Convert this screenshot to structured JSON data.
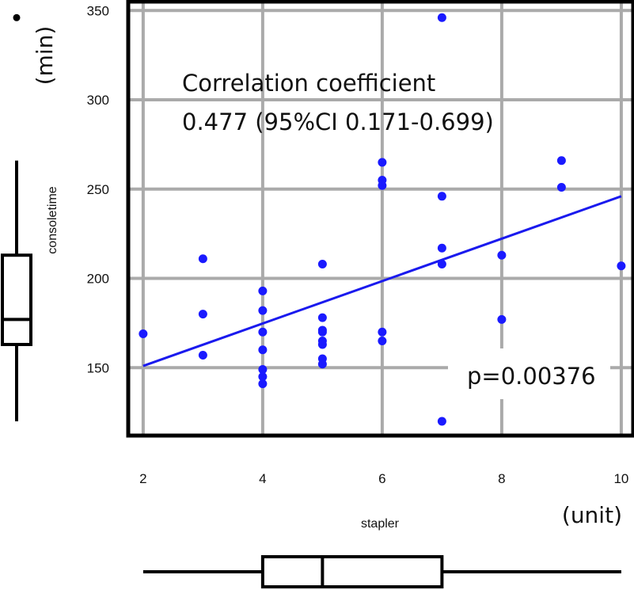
{
  "chart_data": {
    "type": "scatter",
    "xlabel": "stapler",
    "ylabel": "consoletime",
    "x_unit": "(unit)",
    "y_unit": "(min)",
    "xlim": [
      1.75,
      10.2
    ],
    "ylim": [
      112,
      355
    ],
    "x_ticks": [
      2,
      4,
      6,
      8,
      10
    ],
    "y_ticks": [
      150,
      200,
      250,
      300,
      350
    ],
    "grid": true,
    "point_color": "#1a1aff",
    "line_color": "#1a1aee",
    "points": [
      {
        "x": 2,
        "y": 169
      },
      {
        "x": 3,
        "y": 211
      },
      {
        "x": 3,
        "y": 180
      },
      {
        "x": 3,
        "y": 157
      },
      {
        "x": 4,
        "y": 193
      },
      {
        "x": 4,
        "y": 182
      },
      {
        "x": 4,
        "y": 170
      },
      {
        "x": 4,
        "y": 160
      },
      {
        "x": 4,
        "y": 149
      },
      {
        "x": 4,
        "y": 145
      },
      {
        "x": 4,
        "y": 141
      },
      {
        "x": 5,
        "y": 208
      },
      {
        "x": 5,
        "y": 178
      },
      {
        "x": 5,
        "y": 171
      },
      {
        "x": 5,
        "y": 170
      },
      {
        "x": 5,
        "y": 165
      },
      {
        "x": 5,
        "y": 163
      },
      {
        "x": 5,
        "y": 155
      },
      {
        "x": 5,
        "y": 152
      },
      {
        "x": 6,
        "y": 265
      },
      {
        "x": 6,
        "y": 255
      },
      {
        "x": 6,
        "y": 252
      },
      {
        "x": 6,
        "y": 170
      },
      {
        "x": 6,
        "y": 165
      },
      {
        "x": 7,
        "y": 346
      },
      {
        "x": 7,
        "y": 246
      },
      {
        "x": 7,
        "y": 217
      },
      {
        "x": 7,
        "y": 208
      },
      {
        "x": 7,
        "y": 120
      },
      {
        "x": 8,
        "y": 213
      },
      {
        "x": 8,
        "y": 177
      },
      {
        "x": 9,
        "y": 266
      },
      {
        "x": 9,
        "y": 251
      },
      {
        "x": 10,
        "y": 207
      }
    ],
    "regression": {
      "x": [
        2,
        10
      ],
      "y": [
        151,
        246
      ]
    },
    "annotations": {
      "corr_line1": "Correlation coefficient",
      "corr_line2": "0.477 (95%CI 0.171-0.699)",
      "p_value": "p=0.00376"
    },
    "y_boxplot": {
      "min": 120,
      "q1": 163,
      "median": 177,
      "q3": 213,
      "max": 266,
      "outliers": [
        346
      ]
    },
    "x_boxplot": {
      "min": 2,
      "q1": 4,
      "median": 5,
      "q3": 7,
      "max": 10
    }
  }
}
